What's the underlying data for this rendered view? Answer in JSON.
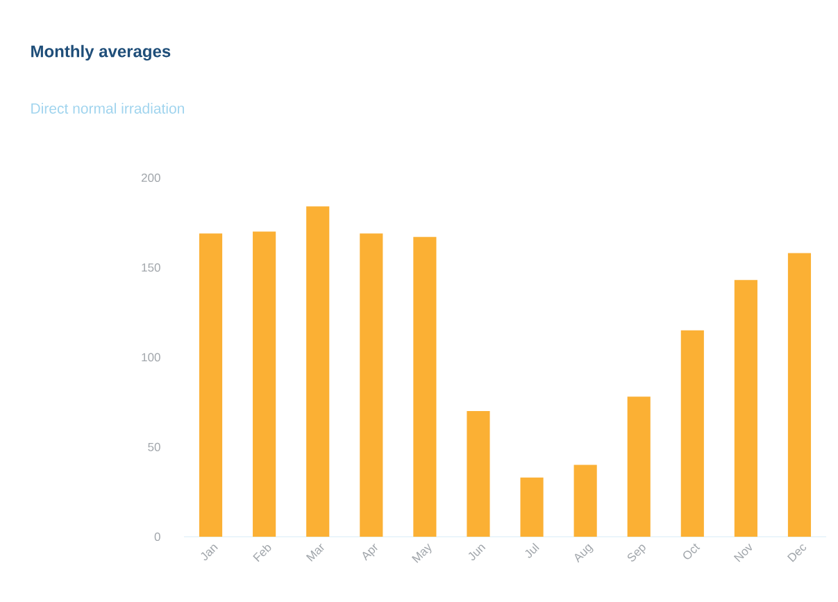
{
  "chart_data": {
    "type": "bar",
    "title": "Monthly averages",
    "subtitle": "Direct normal irradiation",
    "categories": [
      "Jan",
      "Feb",
      "Mar",
      "Apr",
      "May",
      "Jun",
      "Jul",
      "Aug",
      "Sep",
      "Oct",
      "Nov",
      "Dec"
    ],
    "values": [
      169,
      170,
      184,
      169,
      167,
      70,
      33,
      40,
      78,
      115,
      143,
      158
    ],
    "color": "#fbb034",
    "ylim": [
      0,
      200
    ],
    "yticks": [
      0,
      50,
      100,
      150,
      200
    ]
  }
}
